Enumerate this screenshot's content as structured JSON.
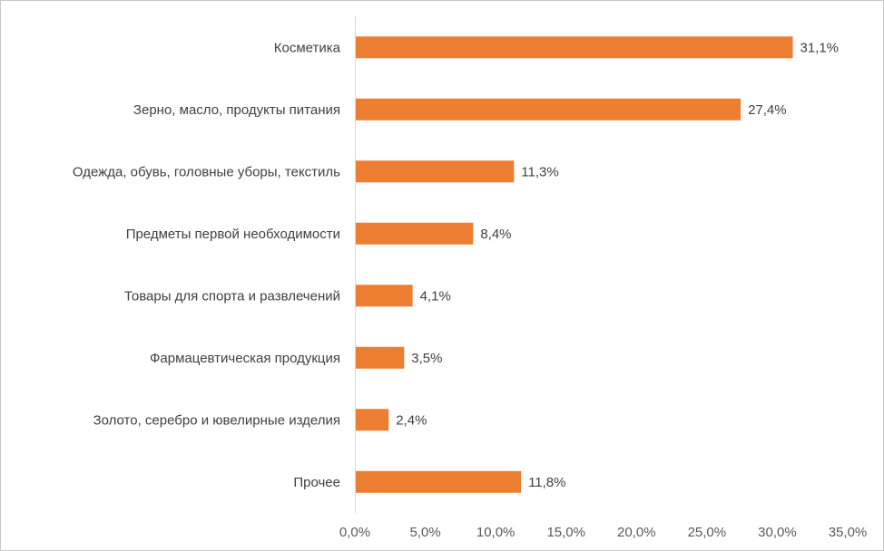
{
  "chart_data": {
    "type": "bar",
    "orientation": "horizontal",
    "title": "",
    "xlabel": "",
    "ylabel": "",
    "categories": [
      "Косметика",
      "Зерно, масло, продукты питания",
      "Одежда, обувь, головные уборы, текстиль",
      "Предметы первой необходимости",
      "Товары для спорта и развлечений",
      "Фармацевтическая продукция",
      "Золото, серебро и ювелирные изделия",
      "Прочее"
    ],
    "values": [
      31.1,
      27.4,
      11.3,
      8.4,
      4.1,
      3.5,
      2.4,
      11.8
    ],
    "data_labels": [
      "31,1%",
      "27,4%",
      "11,3%",
      "8,4%",
      "4,1%",
      "3,5%",
      "2,4%",
      "11,8%"
    ],
    "xlim": [
      0,
      35
    ],
    "xticks": [
      0,
      5,
      10,
      15,
      20,
      25,
      30,
      35
    ],
    "xtick_labels": [
      "0,0%",
      "5,0%",
      "10,0%",
      "15,0%",
      "20,0%",
      "25,0%",
      "30,0%",
      "35,0%"
    ],
    "grid": false,
    "legend": "none",
    "bar_color": "#ed7d31"
  }
}
